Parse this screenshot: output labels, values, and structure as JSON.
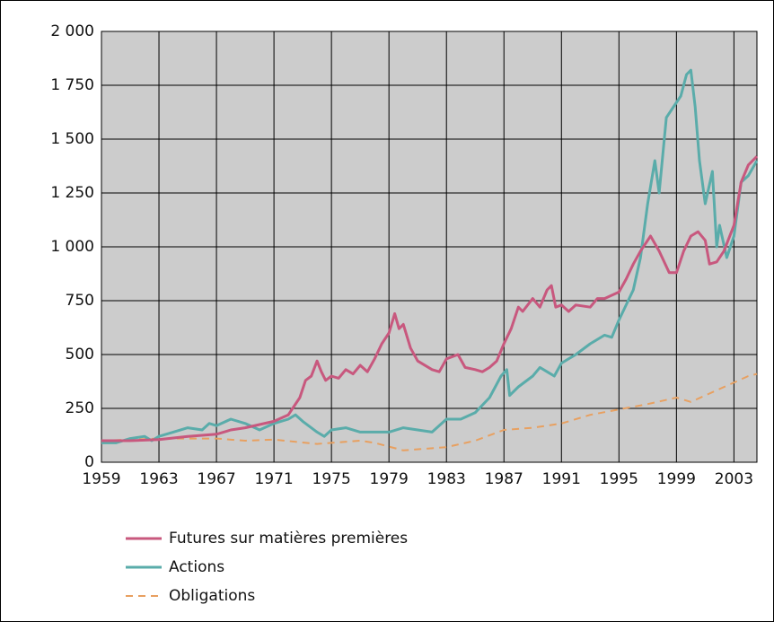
{
  "chart_data": {
    "type": "line",
    "series": [
      {
        "name": "Futures sur matières premières",
        "color": "#c8587e",
        "dash": false,
        "x": [
          1959,
          1961,
          1963,
          1965,
          1967,
          1968,
          1969,
          1970,
          1971,
          1972,
          1972.8,
          1973.2,
          1973.6,
          1974,
          1974.3,
          1974.6,
          1975,
          1975.5,
          1976,
          1976.5,
          1977,
          1977.5,
          1978,
          1978.5,
          1979,
          1979.4,
          1979.7,
          1980,
          1980.5,
          1981,
          1982,
          1982.5,
          1983,
          1983.8,
          1984.3,
          1985,
          1985.5,
          1986,
          1986.5,
          1987,
          1987.5,
          1988,
          1988.3,
          1989,
          1989.5,
          1990,
          1990.3,
          1990.6,
          1991,
          1991.5,
          1992,
          1993,
          1993.5,
          1994,
          1995,
          1995.5,
          1996,
          1996.5,
          1997.2,
          1997.8,
          1998.5,
          1999,
          1999.5,
          2000,
          2000.5,
          2001,
          2001.3,
          2001.8,
          2002.3,
          2003,
          2003.5,
          2004,
          2004.6
        ],
        "values": [
          100,
          100,
          105,
          120,
          130,
          150,
          160,
          175,
          190,
          220,
          300,
          380,
          400,
          470,
          420,
          380,
          400,
          390,
          430,
          410,
          450,
          420,
          480,
          550,
          600,
          690,
          620,
          640,
          530,
          470,
          430,
          420,
          480,
          500,
          440,
          430,
          420,
          440,
          470,
          550,
          620,
          720,
          700,
          760,
          720,
          800,
          820,
          720,
          730,
          700,
          730,
          720,
          760,
          760,
          790,
          850,
          920,
          980,
          1050,
          980,
          880,
          880,
          980,
          1050,
          1070,
          1030,
          920,
          930,
          980,
          1100,
          1300,
          1380,
          1420
        ]
      },
      {
        "name": "Actions",
        "color": "#5aacaa",
        "dash": false,
        "x": [
          1959,
          1960,
          1961,
          1962,
          1962.5,
          1963,
          1964,
          1965,
          1966,
          1966.5,
          1967,
          1968,
          1969,
          1970,
          1971,
          1972,
          1972.5,
          1973,
          1974,
          1974.5,
          1975,
          1976,
          1977,
          1978,
          1979,
          1980,
          1981,
          1982,
          1983,
          1984,
          1985,
          1986,
          1986.8,
          1987.2,
          1987.4,
          1988,
          1989,
          1989.5,
          1990,
          1990.5,
          1991,
          1992,
          1993,
          1994,
          1994.5,
          1995,
          1996,
          1996.5,
          1997,
          1997.5,
          1997.8,
          1998.3,
          1998.8,
          1999.3,
          1999.7,
          2000,
          2000.3,
          2000.6,
          2001,
          2001.5,
          2001.8,
          2002,
          2002.5,
          2003,
          2003.5,
          2004,
          2004.6
        ],
        "values": [
          90,
          90,
          110,
          120,
          100,
          120,
          140,
          160,
          150,
          180,
          170,
          200,
          180,
          150,
          180,
          200,
          220,
          190,
          140,
          120,
          150,
          160,
          140,
          140,
          140,
          160,
          150,
          140,
          200,
          200,
          230,
          300,
          400,
          430,
          310,
          350,
          400,
          440,
          420,
          400,
          460,
          500,
          550,
          590,
          580,
          660,
          800,
          950,
          1200,
          1400,
          1250,
          1600,
          1650,
          1700,
          1800,
          1820,
          1650,
          1400,
          1200,
          1350,
          1000,
          1100,
          950,
          1050,
          1300,
          1330,
          1400
        ]
      },
      {
        "name": "Obligations",
        "color": "#e8a060",
        "dash": true,
        "x": [
          1959,
          1963,
          1965,
          1967,
          1969,
          1971,
          1974,
          1977,
          1978,
          1980,
          1983,
          1985,
          1987,
          1989,
          1991,
          1993,
          1995,
          1997,
          1999,
          2000,
          2002,
          2004,
          2004.6
        ],
        "values": [
          100,
          110,
          110,
          110,
          100,
          105,
          85,
          100,
          90,
          55,
          70,
          100,
          150,
          160,
          180,
          220,
          245,
          270,
          300,
          280,
          340,
          400,
          410
        ]
      }
    ],
    "xlim": [
      1959,
      2004.6
    ],
    "xticks": [
      1959,
      1963,
      1967,
      1971,
      1975,
      1979,
      1983,
      1987,
      1991,
      1995,
      1999,
      2003
    ],
    "ylim": [
      0,
      2000
    ],
    "yticks": [
      0,
      250,
      500,
      750,
      {
        "value": 1000,
        "label": "1 000"
      },
      {
        "value": 1250,
        "label": "1 250"
      },
      {
        "value": 1500,
        "label": "1 500"
      },
      {
        "value": 1750,
        "label": "1 750"
      },
      {
        "value": 2000,
        "label": "2 000"
      }
    ],
    "grid": true
  }
}
